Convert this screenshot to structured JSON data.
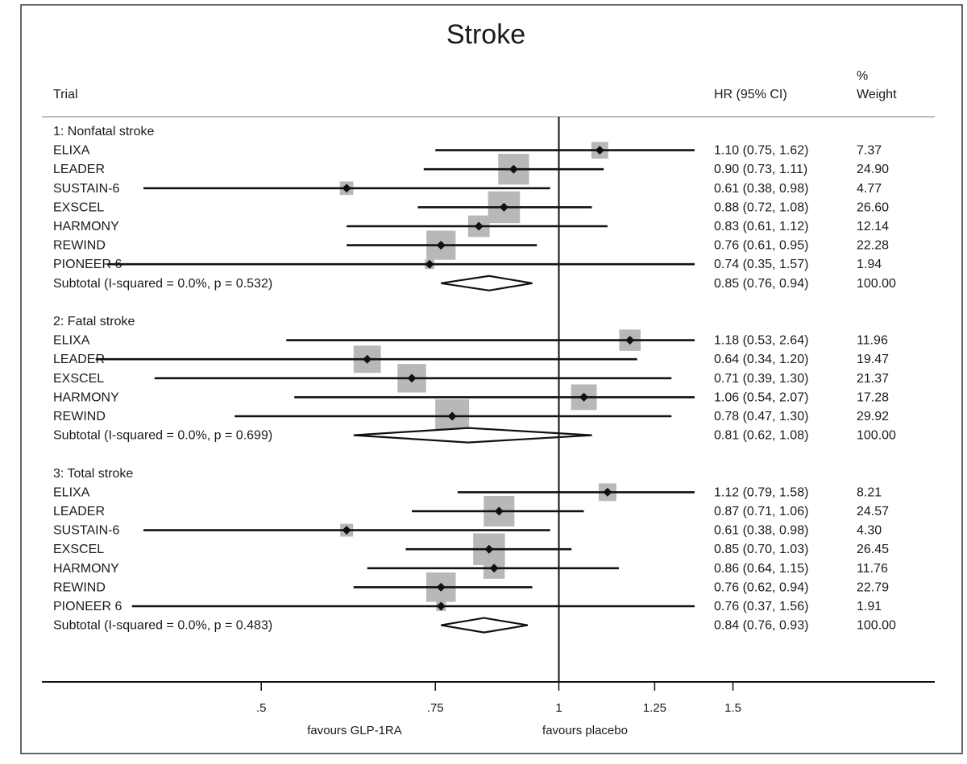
{
  "chart_data": {
    "type": "forest",
    "title": "Stroke",
    "columns": {
      "trial": "Trial",
      "hr": "HR (95% CI)",
      "weight_line1": "%",
      "weight_line2": "Weight"
    },
    "x_scale": "log",
    "xlim": [
      0.3,
      2.4
    ],
    "null_line": 1,
    "ticks": [
      {
        "value": 0.5,
        "label": ".5"
      },
      {
        "value": 0.75,
        "label": ".75"
      },
      {
        "value": 1,
        "label": "1"
      },
      {
        "value": 1.25,
        "label": "1.25"
      },
      {
        "value": 1.5,
        "label": "1.5"
      }
    ],
    "x_left_label": "favours GLP-1RA",
    "x_right_label": "favours placebo",
    "groups": [
      {
        "label": "1:  Nonfatal stroke",
        "studies": [
          {
            "name": "ELIXA",
            "hr": 1.1,
            "lo": 0.75,
            "hi": 1.62,
            "hr_text": "1.10 (0.75, 1.62)",
            "weight": 7.37,
            "weight_text": "7.37"
          },
          {
            "name": "LEADER",
            "hr": 0.9,
            "lo": 0.73,
            "hi": 1.11,
            "hr_text": "0.90 (0.73, 1.11)",
            "weight": 24.9,
            "weight_text": "24.90"
          },
          {
            "name": "SUSTAIN-6",
            "hr": 0.61,
            "lo": 0.38,
            "hi": 0.98,
            "hr_text": "0.61 (0.38, 0.98)",
            "weight": 4.77,
            "weight_text": "4.77"
          },
          {
            "name": "EXSCEL",
            "hr": 0.88,
            "lo": 0.72,
            "hi": 1.08,
            "hr_text": "0.88 (0.72, 1.08)",
            "weight": 26.6,
            "weight_text": "26.60"
          },
          {
            "name": "HARMONY",
            "hr": 0.83,
            "lo": 0.61,
            "hi": 1.12,
            "hr_text": "0.83 (0.61, 1.12)",
            "weight": 12.14,
            "weight_text": "12.14"
          },
          {
            "name": "REWIND",
            "hr": 0.76,
            "lo": 0.61,
            "hi": 0.95,
            "hr_text": "0.76 (0.61, 0.95)",
            "weight": 22.28,
            "weight_text": "22.28"
          },
          {
            "name": "PIONEER 6",
            "hr": 0.74,
            "lo": 0.35,
            "hi": 1.57,
            "hr_text": "0.74 (0.35, 1.57)",
            "weight": 1.94,
            "weight_text": "1.94"
          }
        ],
        "subtotal": {
          "label": "Subtotal  (I-squared = 0.0%, p = 0.532)",
          "hr": 0.85,
          "lo": 0.76,
          "hi": 0.94,
          "hr_text": "0.85 (0.76, 0.94)",
          "weight_text": "100.00"
        }
      },
      {
        "label": "2:  Fatal stroke",
        "studies": [
          {
            "name": "ELIXA",
            "hr": 1.18,
            "lo": 0.53,
            "hi": 2.64,
            "hr_text": "1.18 (0.53, 2.64)",
            "weight": 11.96,
            "weight_text": "11.96"
          },
          {
            "name": "LEADER",
            "hr": 0.64,
            "lo": 0.34,
            "hi": 1.2,
            "hr_text": "0.64 (0.34, 1.20)",
            "weight": 19.47,
            "weight_text": "19.47"
          },
          {
            "name": "EXSCEL",
            "hr": 0.71,
            "lo": 0.39,
            "hi": 1.3,
            "hr_text": "0.71 (0.39, 1.30)",
            "weight": 21.37,
            "weight_text": "21.37"
          },
          {
            "name": "HARMONY",
            "hr": 1.06,
            "lo": 0.54,
            "hi": 2.07,
            "hr_text": "1.06 (0.54, 2.07)",
            "weight": 17.28,
            "weight_text": "17.28"
          },
          {
            "name": "REWIND",
            "hr": 0.78,
            "lo": 0.47,
            "hi": 1.3,
            "hr_text": "0.78 (0.47, 1.30)",
            "weight": 29.92,
            "weight_text": "29.92"
          }
        ],
        "subtotal": {
          "label": "Subtotal  (I-squared = 0.0%, p = 0.699)",
          "hr": 0.81,
          "lo": 0.62,
          "hi": 1.08,
          "hr_text": "0.81 (0.62, 1.08)",
          "weight_text": "100.00"
        }
      },
      {
        "label": "3:  Total stroke",
        "studies": [
          {
            "name": "ELIXA",
            "hr": 1.12,
            "lo": 0.79,
            "hi": 1.58,
            "hr_text": "1.12 (0.79, 1.58)",
            "weight": 8.21,
            "weight_text": "8.21"
          },
          {
            "name": "LEADER",
            "hr": 0.87,
            "lo": 0.71,
            "hi": 1.06,
            "hr_text": "0.87 (0.71, 1.06)",
            "weight": 24.57,
            "weight_text": "24.57"
          },
          {
            "name": "SUSTAIN-6",
            "hr": 0.61,
            "lo": 0.38,
            "hi": 0.98,
            "hr_text": "0.61 (0.38, 0.98)",
            "weight": 4.3,
            "weight_text": "4.30"
          },
          {
            "name": "EXSCEL",
            "hr": 0.85,
            "lo": 0.7,
            "hi": 1.03,
            "hr_text": "0.85 (0.70, 1.03)",
            "weight": 26.45,
            "weight_text": "26.45"
          },
          {
            "name": "HARMONY",
            "hr": 0.86,
            "lo": 0.64,
            "hi": 1.15,
            "hr_text": "0.86 (0.64, 1.15)",
            "weight": 11.76,
            "weight_text": "11.76"
          },
          {
            "name": "REWIND",
            "hr": 0.76,
            "lo": 0.62,
            "hi": 0.94,
            "hr_text": "0.76 (0.62, 0.94)",
            "weight": 22.79,
            "weight_text": "22.79"
          },
          {
            "name": "PIONEER 6",
            "hr": 0.76,
            "lo": 0.37,
            "hi": 1.56,
            "hr_text": "0.76 (0.37, 1.56)",
            "weight": 1.91,
            "weight_text": "1.91"
          }
        ],
        "subtotal": {
          "label": "Subtotal  (I-squared = 0.0%, p = 0.483)",
          "hr": 0.84,
          "lo": 0.76,
          "hi": 0.93,
          "hr_text": "0.84 (0.76, 0.93)",
          "weight_text": "100.00"
        }
      }
    ]
  },
  "colors": {
    "ink": "#111111",
    "weight_box": "#b8b8b8",
    "separator": "#bdbdbd",
    "frame": "#333333"
  }
}
